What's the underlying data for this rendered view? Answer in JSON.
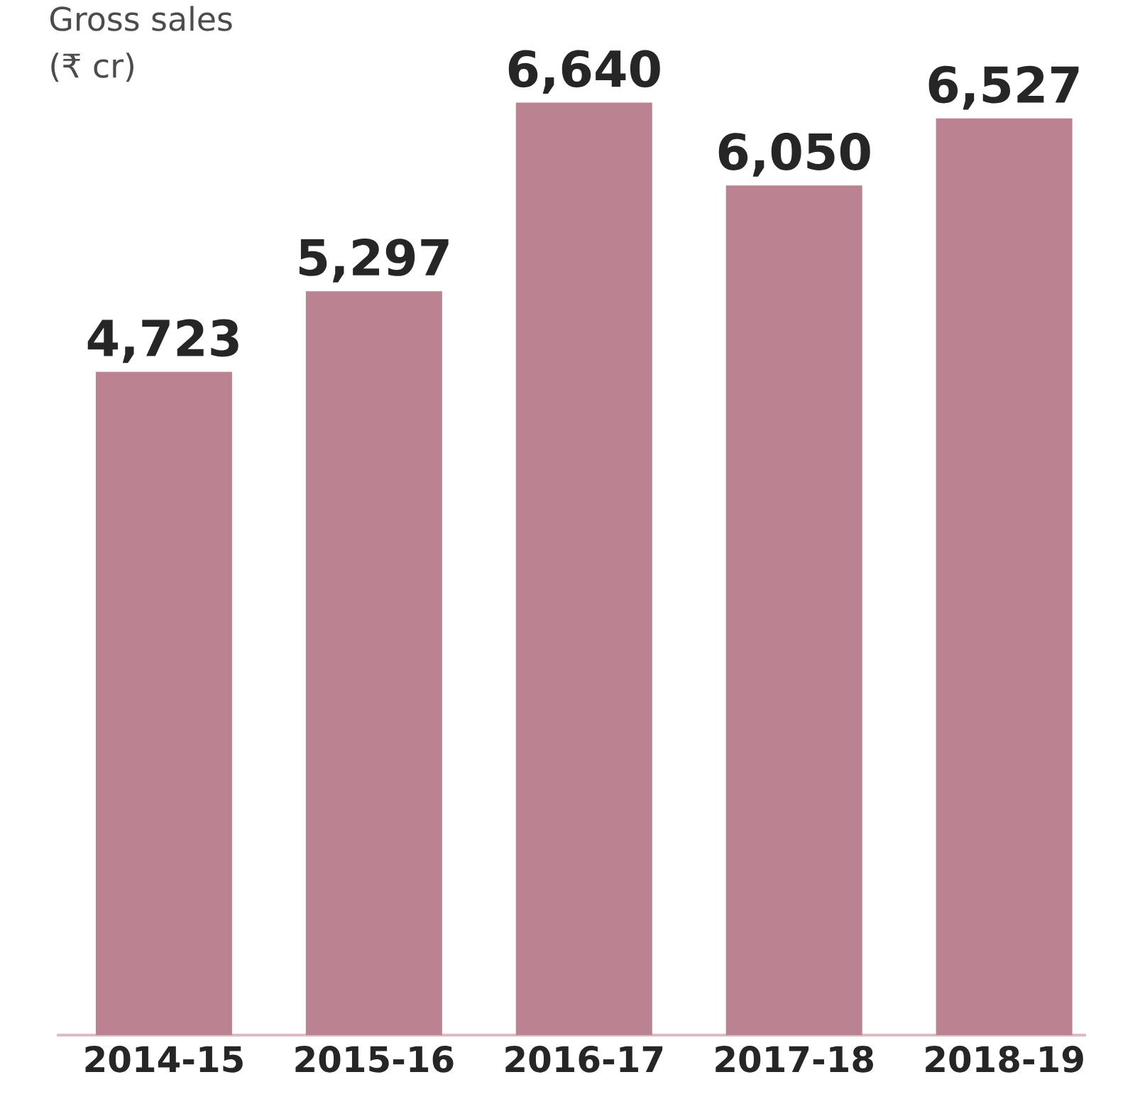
{
  "chart_data": {
    "type": "bar",
    "title": "Gross sales",
    "subtitle": "(₹ cr)",
    "categories": [
      "2014-15",
      "2015-16",
      "2016-17",
      "2017-18",
      "2018-19"
    ],
    "values": [
      4723,
      5297,
      6640,
      6050,
      6527
    ],
    "value_labels": [
      "4,723",
      "5,297",
      "6,640",
      "6,050",
      "6,527"
    ],
    "color": "#bb8391"
  }
}
